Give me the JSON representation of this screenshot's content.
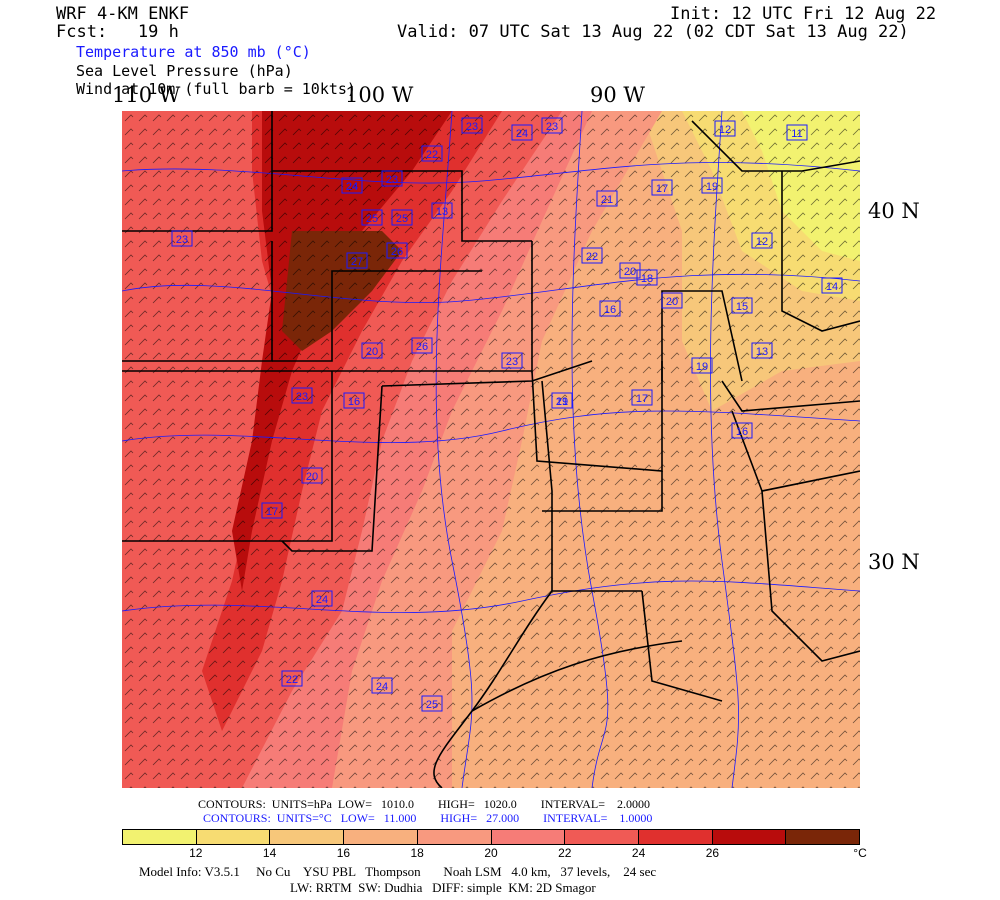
{
  "header": {
    "model": "WRF 4-KM ENKF",
    "fcst": "Fcst:   19 h",
    "init": "Init: 12 UTC Fri 12 Aug 22",
    "valid": "Valid: 07 UTC Sat 13 Aug 22 (02 CDT Sat 13 Aug 22)"
  },
  "fields": {
    "temperature": "Temperature at 850 mb (°C)",
    "slp": "Sea Level Pressure (hPa)",
    "wind": "Wind at 10m (full barb = 10kts)"
  },
  "axes": {
    "lon_labels": [
      "110 W",
      "100 W",
      "90 W"
    ],
    "lat_labels": [
      "40 N",
      "30 N"
    ]
  },
  "contour_info": {
    "pressure_line": "CONTOURS:  UNITS=hPa  LOW=   1010.0        HIGH=   1020.0        INTERVAL=    2.0000",
    "temp_line": "CONTOURS:  UNITS=°C   LOW=   11.000        HIGH=   27.000        INTERVAL=    1.0000"
  },
  "colorbar": {
    "colors": [
      "#f2f270",
      "#f7dc72",
      "#f7c77a",
      "#f8b07e",
      "#f8997f",
      "#f67c77",
      "#f05a55",
      "#e0302e",
      "#b80c0c",
      "#7a2608"
    ],
    "ticks": [
      "12",
      "14",
      "16",
      "18",
      "20",
      "22",
      "24",
      "26"
    ],
    "unit": "°C"
  },
  "map_labels": {
    "colors": {
      "label_border": "#1a1aff",
      "label_text": "#1a1aff",
      "state_line": "#000000"
    },
    "temp_labels": [
      "23",
      "24",
      "23",
      "22",
      "12",
      "11",
      "24",
      "23",
      "24",
      "25",
      "25",
      "26",
      "27",
      "26",
      "23",
      "21",
      "19",
      "17",
      "15",
      "12",
      "13",
      "14",
      "13",
      "22",
      "20",
      "18",
      "16",
      "17",
      "19",
      "16",
      "20",
      "16",
      "17",
      "24",
      "22",
      "24",
      "25",
      "23",
      "23",
      "21",
      "20",
      "19",
      "20"
    ]
  },
  "footer": {
    "line1": "Model Info: V3.5.1     No Cu    YSU PBL   Thompson       Noah LSM   4.0 km,   37 levels,    24 sec",
    "line2": "LW: RRTM  SW: Dudhia   DIFF: simple  KM: 2D Smagor"
  }
}
